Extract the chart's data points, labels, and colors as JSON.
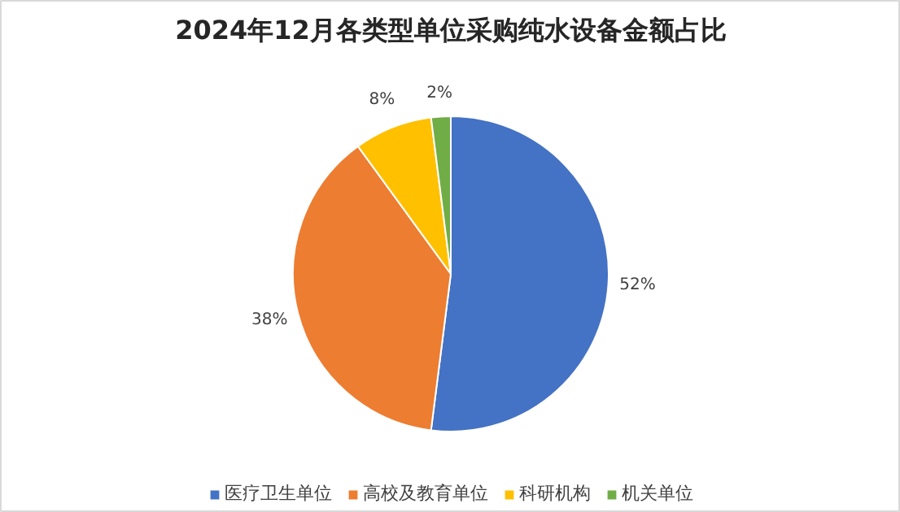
{
  "chart_data": {
    "type": "pie",
    "title": "2024年12月各类型单位采购纯水设备金额占比",
    "categories": [
      "医疗卫生单位",
      "高校及教育单位",
      "科研机构",
      "机关单位"
    ],
    "values": [
      52,
      38,
      8,
      2
    ],
    "colors": [
      "#4472c4",
      "#ed7d31",
      "#ffc000",
      "#70ad47"
    ],
    "value_labels": [
      "52%",
      "38%",
      "8%",
      "2%"
    ],
    "legend": "bottom"
  }
}
